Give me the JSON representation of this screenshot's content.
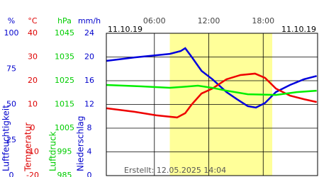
{
  "chart_data": {
    "type": "line",
    "date_left": "11.10.19",
    "date_right": "11.10.19",
    "created": "Erstellt: 12.05.2025 14:04",
    "xlim": [
      0.7,
      24
    ],
    "xticks": [
      {
        "value": 6,
        "label": "06:00"
      },
      {
        "value": 12,
        "label": "12:00"
      },
      {
        "value": 18,
        "label": "18:00"
      }
    ],
    "daylight": [
      7.7,
      19.0
    ],
    "y_axes": [
      {
        "unit": "%",
        "name": "Luftfeuchtigkeit",
        "color": "#0000cc",
        "lim": [
          0,
          100
        ],
        "ticks": [
          0,
          25,
          50,
          75,
          100
        ]
      },
      {
        "unit": "°C",
        "name": "Temperatur",
        "color": "#dd0000",
        "lim": [
          -20,
          40
        ],
        "ticks": [
          -20,
          -10,
          0,
          10,
          20,
          30,
          40
        ]
      },
      {
        "unit": "hPa",
        "name": "Luftdruck",
        "color": "#00cc00",
        "lim": [
          985,
          1045
        ],
        "ticks": [
          985,
          995,
          1005,
          1015,
          1025,
          1035,
          1045
        ]
      },
      {
        "unit": "mm/h",
        "name": "Niederschlag",
        "color": "#0000cc",
        "lim": [
          0,
          24
        ],
        "ticks": [
          0,
          4,
          8,
          12,
          16,
          20,
          24
        ]
      }
    ],
    "series": [
      {
        "axis": 0,
        "color": "#0000dd",
        "x": [
          0.7,
          3.8,
          7.7,
          8.9,
          9.4,
          10.1,
          11.2,
          12.4,
          13.95,
          15.1,
          16.3,
          17.2,
          18.2,
          19.4,
          20.96,
          22.5,
          23.9
        ],
        "values": [
          80.6,
          83,
          85.5,
          87.5,
          89.5,
          83.5,
          73.6,
          67.7,
          58.7,
          53.7,
          48.8,
          47.8,
          51,
          58.7,
          63.7,
          67.7,
          70
        ]
      },
      {
        "axis": 1,
        "color": "#ee0000",
        "x": [
          0.7,
          3.8,
          6.2,
          8.5,
          9.4,
          10.1,
          11.2,
          12.4,
          13.95,
          15.5,
          17.1,
          18.2,
          19.4,
          20.96,
          22.5,
          23.9
        ],
        "values": [
          8.4,
          6.9,
          5.4,
          4.5,
          6.3,
          9.9,
          14.6,
          16.7,
          20.6,
          22.4,
          23,
          21.2,
          16.7,
          13.7,
          12.2,
          11
        ]
      },
      {
        "axis": 2,
        "color": "#00ee00",
        "x": [
          0.7,
          4.6,
          7.7,
          10.8,
          12.4,
          13.95,
          16.3,
          19.4,
          21.7,
          23.9
        ],
        "values": [
          1023.2,
          1022.6,
          1022,
          1022.9,
          1022,
          1020.8,
          1019.3,
          1019,
          1020.2,
          1020.8
        ]
      }
    ]
  }
}
